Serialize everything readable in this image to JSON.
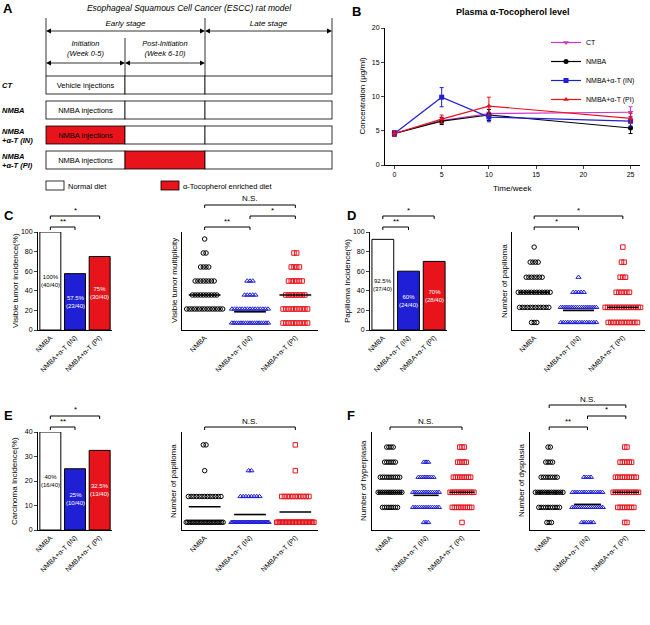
{
  "diagram": {
    "panel": "A",
    "title": "Esophageal Squamous Cell Cancer (ESCC) rat model",
    "stages": [
      "Early stage",
      "Late stage"
    ],
    "phases": [
      {
        "label": "Initiation",
        "weeks": "(Week 0-5)"
      },
      {
        "label": "Post-Initiation",
        "weeks": "(Week 6-10)"
      }
    ],
    "groups": [
      {
        "label": [
          "CT"
        ],
        "injections": "Vehicle injections",
        "diet": [
          "normal",
          "normal",
          "normal"
        ]
      },
      {
        "label": [
          "NMBA"
        ],
        "injections": "NMBA injections",
        "diet": [
          "normal",
          "normal",
          "normal"
        ]
      },
      {
        "label": [
          "NMBA",
          "+α-T (IN)"
        ],
        "injections": "NMBA injections",
        "diet": [
          "enriched",
          "normal",
          "normal"
        ]
      },
      {
        "label": [
          "NMBA",
          "+α-T (PI)"
        ],
        "injections": "NMBA injections",
        "diet": [
          "normal",
          "enriched",
          "normal"
        ]
      }
    ],
    "legend": [
      {
        "key": "normal",
        "label": "Normal diet",
        "color": "#ffffff"
      },
      {
        "key": "enriched",
        "label": "α-Tocopherol enriched diet",
        "color": "#e8141c"
      }
    ]
  },
  "chart_data": [
    {
      "panel": "B",
      "type": "line",
      "title": "Plasma α-Tocopherol level",
      "x_label": "Time/week",
      "y_label": "Concentration (μg/ml)",
      "x": [
        0,
        5,
        10,
        25
      ],
      "xlim": [
        -1,
        26
      ],
      "xticks": [
        0,
        5,
        10,
        15,
        20,
        25
      ],
      "ylim": [
        0,
        20
      ],
      "yticks": [
        0,
        5,
        10,
        15,
        20
      ],
      "legend": "top right",
      "series": [
        {
          "name": "CT",
          "color": "#cc33cc",
          "marker": "triangle-down",
          "values": [
            4.6,
            6.5,
            7.5,
            7.7
          ],
          "errors": [
            0.4,
            0.5,
            1.0,
            0.8
          ]
        },
        {
          "name": "NMBA",
          "color": "#000000",
          "marker": "circle",
          "values": [
            4.6,
            6.4,
            7.3,
            5.4
          ],
          "errors": [
            0.4,
            0.5,
            0.8,
            0.8
          ]
        },
        {
          "name": "NMBA+α-T (IN)",
          "color": "#1f1fd6",
          "marker": "square",
          "values": [
            4.6,
            9.9,
            7.0,
            6.4
          ],
          "errors": [
            0.4,
            1.4,
            0.7,
            0.7
          ]
        },
        {
          "name": "NMBA+α-T (PI)",
          "color": "#e8141c",
          "marker": "triangle-up",
          "values": [
            4.6,
            6.7,
            8.6,
            6.8
          ],
          "errors": [
            0.4,
            0.6,
            1.3,
            0.7
          ]
        }
      ]
    },
    {
      "panel": "C",
      "type": "bar",
      "y_label": "Visible tumor incidence(%)",
      "categories": [
        "NMBA",
        "NMBA+α-T (IN)",
        "NMBA+α-T (PI)"
      ],
      "values": [
        100,
        57.5,
        75
      ],
      "value_labels": [
        "100%\n(40/40)",
        "57.5%\n(23/40)",
        "75%\n(30/40)"
      ],
      "data_labels": true,
      "colors": [
        "#ffffff",
        "#1f1fd6",
        "#e8141c"
      ],
      "ylim": [
        0,
        100
      ],
      "yticks": [
        0,
        20,
        40,
        60,
        80,
        100
      ],
      "comparisons": [
        {
          "between": [
            0,
            1
          ],
          "text": "**"
        },
        {
          "between": [
            0,
            2
          ],
          "text": "*"
        }
      ]
    },
    {
      "type": "strip",
      "y_label": "Visible tumor multiplicity",
      "categories": [
        "NMBA",
        "NMBA+α-T (IN)",
        "NMBA+α-T (PI)"
      ],
      "ylim": [
        -0.5,
        6.5
      ],
      "tick_labels": "x",
      "groups": [
        {
          "color": "#000000",
          "marker": "circle",
          "levels": [
            1,
            2,
            3,
            4,
            5,
            6
          ],
          "counts": [
            15,
            10,
            8,
            4,
            2,
            1
          ],
          "mean": 2
        },
        {
          "color": "#1f1fd6",
          "marker": "triangle-up",
          "levels": [
            0,
            1,
            2,
            3
          ],
          "counts": [
            17,
            15,
            5,
            3
          ],
          "mean": 0.8
        },
        {
          "color": "#e8141c",
          "marker": "square",
          "levels": [
            0,
            1,
            2,
            3,
            4,
            5
          ],
          "counts": [
            10,
            10,
            8,
            6,
            4,
            2
          ],
          "mean": 2
        }
      ],
      "comparisons": [
        {
          "between": [
            0,
            1
          ],
          "text": "**"
        },
        {
          "between": [
            1,
            2
          ],
          "text": "*"
        },
        {
          "between": [
            0,
            2
          ],
          "text": "N.S."
        }
      ]
    },
    {
      "panel": "D",
      "type": "bar",
      "y_label": "Papilloma Incidence(%)",
      "categories": [
        "NMBA",
        "NMBA+α-T (IN)",
        "NMBA+α-T (PI)"
      ],
      "values": [
        92.5,
        60,
        70
      ],
      "value_labels": [
        "92.5%\n(37/40)",
        "60%\n(24/40)",
        "70%\n(28/40)"
      ],
      "data_labels": true,
      "colors": [
        "#ffffff",
        "#1f1fd6",
        "#e8141c"
      ],
      "ylim": [
        0,
        100
      ],
      "yticks": [
        0,
        20,
        40,
        60,
        80,
        100
      ],
      "comparisons": [
        {
          "between": [
            0,
            1
          ],
          "text": "**"
        },
        {
          "between": [
            0,
            2
          ],
          "text": "*"
        }
      ]
    },
    {
      "type": "strip",
      "y_label": "Number of papilloma",
      "categories": [
        "NMBA",
        "NMBA+α-T (IN)",
        "NMBA+α-T (PI)"
      ],
      "ylim": [
        -0.5,
        6
      ],
      "tick_labels": "x",
      "groups": [
        {
          "color": "#000000",
          "marker": "circle",
          "levels": [
            0,
            1,
            2,
            3,
            4,
            5
          ],
          "counts": [
            3,
            12,
            13,
            7,
            4,
            1
          ],
          "mean": 2
        },
        {
          "color": "#1f1fd6",
          "marker": "triangle-up",
          "levels": [
            0,
            1,
            2,
            3
          ],
          "counts": [
            16,
            18,
            5,
            1
          ],
          "mean": 0.8
        },
        {
          "color": "#e8141c",
          "marker": "square",
          "levels": [
            0,
            1,
            2,
            3,
            4,
            5
          ],
          "counts": [
            12,
            16,
            6,
            3,
            2,
            1
          ],
          "mean": 1
        }
      ],
      "comparisons": [
        {
          "between": [
            0,
            1
          ],
          "text": "*"
        },
        {
          "between": [
            0,
            2
          ],
          "text": "*"
        }
      ]
    },
    {
      "panel": "E",
      "type": "bar",
      "y_label": "Carcinoma Incidence(%)",
      "categories": [
        "NMBA",
        "NMBA+α-T (IN)",
        "NMBA+α-T (PI)"
      ],
      "values": [
        40,
        25,
        32.5
      ],
      "value_labels": [
        "40%\n(16/40)",
        "25%\n(10/40)",
        "32.5%\n(13/40)"
      ],
      "data_labels": true,
      "colors": [
        "#ffffff",
        "#1f1fd6",
        "#e8141c"
      ],
      "ylim": [
        0,
        40
      ],
      "yticks": [
        0,
        10,
        20,
        30,
        40
      ],
      "comparisons": [
        {
          "between": [
            0,
            1
          ],
          "text": "**"
        },
        {
          "between": [
            0,
            2
          ],
          "text": "*"
        }
      ]
    },
    {
      "type": "strip",
      "y_label": "Number of papilloma",
      "categories": [
        "NMBA",
        "NMBA+α-T (IN)",
        "NMBA+α-T (PI)"
      ],
      "ylim": [
        -0.3,
        3.5
      ],
      "tick_labels": "x",
      "groups": [
        {
          "color": "#000000",
          "marker": "circle",
          "levels": [
            0,
            1,
            2,
            3
          ],
          "counts": [
            24,
            13,
            1,
            2
          ],
          "mean": 0.6
        },
        {
          "color": "#1f1fd6",
          "marker": "triangle-up",
          "levels": [
            0,
            1,
            2
          ],
          "counts": [
            30,
            8,
            2
          ],
          "mean": 0.3
        },
        {
          "color": "#e8141c",
          "marker": "square",
          "levels": [
            0,
            1,
            2,
            3
          ],
          "counts": [
            27,
            11,
            1,
            1
          ],
          "mean": 0.4
        }
      ],
      "comparisons": [
        {
          "between": [
            0,
            2
          ],
          "text": "N.S."
        }
      ]
    },
    {
      "panel": "F",
      "type": "strip",
      "y_label": "Number of hyperplasia",
      "categories": [
        "NMBA",
        "NMBA+α-T (IN)",
        "NMBA+α-T (PI)"
      ],
      "ylim": [
        -0.5,
        6
      ],
      "tick_labels": "x",
      "groups": [
        {
          "color": "#000000",
          "marker": "circle",
          "levels": [
            1,
            2,
            3,
            4,
            5
          ],
          "counts": [
            8,
            12,
            10,
            6,
            4
          ],
          "mean": 2
        },
        {
          "color": "#1f1fd6",
          "marker": "triangle-up",
          "levels": [
            0,
            1,
            2,
            3,
            4
          ],
          "counts": [
            3,
            13,
            13,
            8,
            3
          ],
          "mean": 1.8
        },
        {
          "color": "#e8141c",
          "marker": "square",
          "levels": [
            0,
            1,
            2,
            3,
            4,
            5
          ],
          "counts": [
            1,
            10,
            12,
            9,
            5,
            3
          ],
          "mean": 2
        }
      ],
      "comparisons": [
        {
          "between": [
            0,
            2
          ],
          "text": "N.S."
        }
      ]
    },
    {
      "type": "strip",
      "y_label": "Number of dysplasia",
      "categories": [
        "NMBA",
        "NMBA+α-T (IN)",
        "NMBA+α-T (PI)"
      ],
      "ylim": [
        -0.5,
        6
      ],
      "tick_labels": "x",
      "groups": [
        {
          "color": "#000000",
          "marker": "circle",
          "levels": [
            0,
            1,
            2,
            3,
            4,
            5
          ],
          "counts": [
            3,
            10,
            13,
            8,
            4,
            2
          ],
          "mean": 2
        },
        {
          "color": "#1f1fd6",
          "marker": "triangle-up",
          "levels": [
            0,
            1,
            2,
            3
          ],
          "counts": [
            6,
            16,
            14,
            4
          ],
          "mean": 1.2
        },
        {
          "color": "#e8141c",
          "marker": "square",
          "levels": [
            0,
            1,
            2,
            3,
            4,
            5
          ],
          "counts": [
            2,
            8,
            12,
            10,
            6,
            2
          ],
          "mean": 2
        }
      ],
      "comparisons": [
        {
          "between": [
            0,
            1
          ],
          "text": "**"
        },
        {
          "between": [
            1,
            2
          ],
          "text": "*"
        },
        {
          "between": [
            0,
            2
          ],
          "text": "N.S."
        }
      ]
    }
  ]
}
